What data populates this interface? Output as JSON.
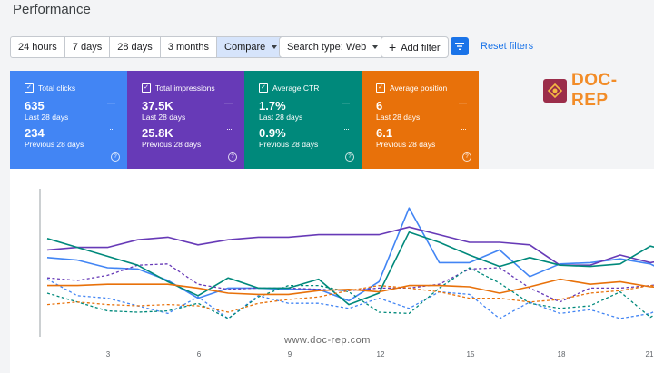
{
  "page": {
    "title": "Performance"
  },
  "toolbar": {
    "ranges": [
      "24 hours",
      "7 days",
      "28 days",
      "3 months",
      "Compare"
    ],
    "search_type": "Search type: Web",
    "add_filter": "Add filter",
    "reset_filters": "Reset filters"
  },
  "cards": [
    {
      "label": "Total clicks",
      "current_value": "635",
      "current_period": "Last 28 days",
      "previous_value": "234",
      "previous_period": "Previous 28 days",
      "color": "#4285f4"
    },
    {
      "label": "Total impressions",
      "current_value": "37.5K",
      "current_period": "Last 28 days",
      "previous_value": "25.8K",
      "previous_period": "Previous 28 days",
      "color": "#673ab7"
    },
    {
      "label": "Average CTR",
      "current_value": "1.7%",
      "current_period": "Last 28 days",
      "previous_value": "0.9%",
      "previous_period": "Previous 28 days",
      "color": "#00897b"
    },
    {
      "label": "Average position",
      "current_value": "6",
      "current_period": "Last 28 days",
      "previous_value": "6.1",
      "previous_period": "Previous 28 days",
      "color": "#e8710a"
    }
  ],
  "logo_text": "DOC-REP",
  "watermark": "www.doc-rep.com",
  "chart_data": {
    "type": "line",
    "x": [
      1,
      2,
      3,
      4,
      5,
      6,
      7,
      8,
      9,
      10,
      11,
      12,
      13,
      14,
      15,
      16,
      17,
      18,
      19,
      20,
      21,
      22
    ],
    "xlabel": "",
    "ylabel": "",
    "x_ticks": [
      "3",
      "6",
      "9",
      "12",
      "15",
      "18",
      "21"
    ],
    "grid": false,
    "series": [
      {
        "color": "#4285f4",
        "style": "solid",
        "values": [
          0.48,
          0.46,
          0.4,
          0.39,
          0.3,
          0.16,
          0.24,
          0.24,
          0.23,
          0.23,
          0.14,
          0.29,
          0.87,
          0.44,
          0.44,
          0.54,
          0.33,
          0.43,
          0.44,
          0.47,
          0.43,
          0.31
        ]
      },
      {
        "color": "#4285f4",
        "style": "dashed",
        "values": [
          0.31,
          0.18,
          0.16,
          0.1,
          0.04,
          0.17,
          0.0,
          0.18,
          0.12,
          0.12,
          0.08,
          0.16,
          0.08,
          0.21,
          0.19,
          0.0,
          0.13,
          0.04,
          0.07,
          0.0,
          0.04,
          0.16
        ]
      },
      {
        "color": "#673ab7",
        "style": "solid",
        "values": [
          0.54,
          0.56,
          0.56,
          0.62,
          0.64,
          0.58,
          0.62,
          0.64,
          0.64,
          0.66,
          0.66,
          0.66,
          0.72,
          0.66,
          0.6,
          0.6,
          0.58,
          0.42,
          0.42,
          0.5,
          0.44,
          0.48
        ]
      },
      {
        "color": "#673ab7",
        "style": "dashed",
        "values": [
          0.32,
          0.3,
          0.34,
          0.42,
          0.43,
          0.27,
          0.23,
          0.24,
          0.24,
          0.23,
          0.22,
          0.24,
          0.24,
          0.27,
          0.39,
          0.4,
          0.24,
          0.13,
          0.24,
          0.24,
          0.26,
          0.29
        ]
      },
      {
        "color": "#00897b",
        "style": "solid",
        "values": [
          0.63,
          0.56,
          0.49,
          0.42,
          0.29,
          0.18,
          0.32,
          0.24,
          0.24,
          0.31,
          0.11,
          0.2,
          0.68,
          0.6,
          0.5,
          0.41,
          0.48,
          0.42,
          0.41,
          0.43,
          0.57,
          0.51
        ]
      },
      {
        "color": "#00897b",
        "style": "dashed",
        "values": [
          0.2,
          0.13,
          0.06,
          0.05,
          0.06,
          0.12,
          0.0,
          0.17,
          0.26,
          0.26,
          0.21,
          0.05,
          0.04,
          0.24,
          0.4,
          0.28,
          0.12,
          0.08,
          0.1,
          0.21,
          0.01,
          0.15
        ]
      },
      {
        "color": "#e8710a",
        "style": "solid",
        "values": [
          0.26,
          0.26,
          0.27,
          0.27,
          0.27,
          0.24,
          0.2,
          0.19,
          0.19,
          0.22,
          0.23,
          0.21,
          0.26,
          0.26,
          0.25,
          0.2,
          0.25,
          0.31,
          0.27,
          0.29,
          0.25,
          0.24
        ]
      },
      {
        "color": "#e8710a",
        "style": "dashed",
        "values": [
          0.11,
          0.13,
          0.11,
          0.1,
          0.11,
          0.1,
          0.05,
          0.12,
          0.15,
          0.17,
          0.22,
          0.26,
          0.24,
          0.21,
          0.16,
          0.16,
          0.13,
          0.15,
          0.2,
          0.22,
          0.26,
          0.24
        ]
      }
    ]
  }
}
